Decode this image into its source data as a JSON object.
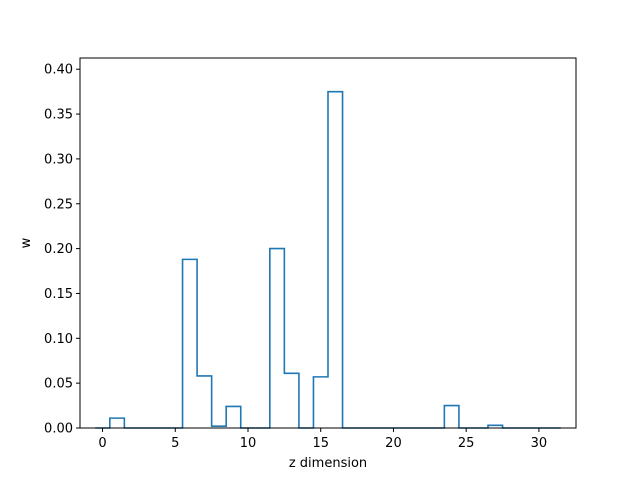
{
  "chart_data": {
    "type": "step",
    "xlabel": "z dimension",
    "ylabel": "w",
    "xlim": [
      -1.55,
      32.55
    ],
    "ylim": [
      0,
      0.4125
    ],
    "x_ticks": [
      0,
      5,
      10,
      15,
      20,
      25,
      30
    ],
    "y_ticks": [
      0.0,
      0.05,
      0.1,
      0.15,
      0.2,
      0.25,
      0.3,
      0.35,
      0.4
    ],
    "y_tick_labels": [
      "0.00",
      "0.05",
      "0.10",
      "0.15",
      "0.20",
      "0.25",
      "0.30",
      "0.35",
      "0.40"
    ],
    "x_tick_labels": [
      "0",
      "5",
      "10",
      "15",
      "20",
      "25",
      "30"
    ],
    "grid": false,
    "color": "#1f77b4",
    "series": [
      {
        "x": [
          0,
          1,
          2,
          3,
          4,
          5,
          6,
          7,
          8,
          9,
          10,
          11,
          12,
          13,
          14,
          15,
          16,
          17,
          18,
          19,
          20,
          21,
          22,
          23,
          24,
          25,
          26,
          27,
          28,
          29,
          30,
          31
        ],
        "values": [
          0.0,
          0.011,
          0.0,
          0.0,
          0.0,
          0.0,
          0.188,
          0.058,
          0.002,
          0.024,
          0.0,
          0.0,
          0.2,
          0.061,
          0.0,
          0.057,
          0.375,
          0.0,
          0.0,
          0.0,
          0.0,
          0.0,
          0.0,
          0.0,
          0.025,
          0.0,
          0.0,
          0.003,
          0.0,
          0.0,
          0.0,
          0.0
        ]
      }
    ]
  }
}
